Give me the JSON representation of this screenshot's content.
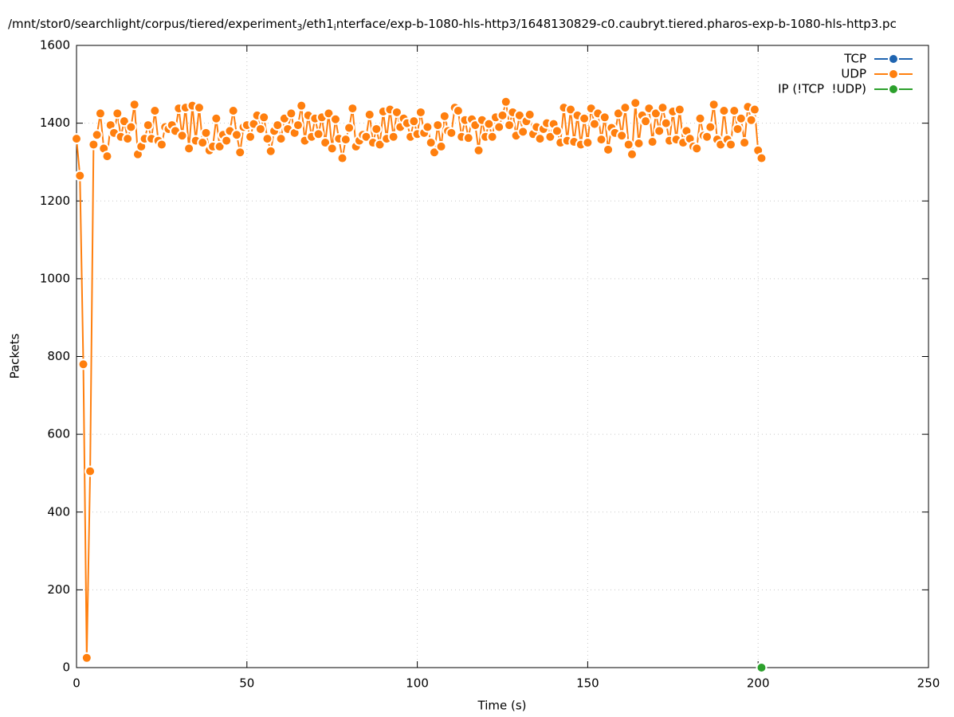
{
  "chart_data": {
    "type": "line",
    "title_parts": [
      "/mnt/stor0/searchlight/corpus/tiered/experiment",
      "3",
      "/eth1",
      "i",
      "nterface/exp-b-1080-hls-http3/1648130829-c0.caubryt.tiered.pharos-exp-b-1080-hls-http3.pc"
    ],
    "xlabel": "Time (s)",
    "ylabel": "Packets",
    "xlim": [
      0,
      250
    ],
    "xticks": [
      0,
      50,
      100,
      150,
      200,
      250
    ],
    "ylim": [
      0,
      1600
    ],
    "yticks": [
      0,
      200,
      400,
      600,
      800,
      1000,
      1200,
      1400,
      1600
    ],
    "grid": true,
    "legend": "top-right",
    "series": [
      {
        "name": "TCP",
        "color": "#1f64b0",
        "x": [],
        "values": []
      },
      {
        "name": "UDP",
        "color": "#ff7f0e",
        "x": [
          0,
          1,
          2,
          3,
          4,
          5,
          6,
          7,
          8,
          9,
          10,
          11,
          12,
          13,
          14,
          15,
          16,
          17,
          18,
          19,
          20,
          21,
          22,
          23,
          24,
          25,
          26,
          27,
          28,
          29,
          30,
          31,
          32,
          33,
          34,
          35,
          36,
          37,
          38,
          39,
          40,
          41,
          42,
          43,
          44,
          45,
          46,
          47,
          48,
          49,
          50,
          51,
          52,
          53,
          54,
          55,
          56,
          57,
          58,
          59,
          60,
          61,
          62,
          63,
          64,
          65,
          66,
          67,
          68,
          69,
          70,
          71,
          72,
          73,
          74,
          75,
          76,
          77,
          78,
          79,
          80,
          81,
          82,
          83,
          84,
          85,
          86,
          87,
          88,
          89,
          90,
          91,
          92,
          93,
          94,
          95,
          96,
          97,
          98,
          99,
          100,
          101,
          102,
          103,
          104,
          105,
          106,
          107,
          108,
          109,
          110,
          111,
          112,
          113,
          114,
          115,
          116,
          117,
          118,
          119,
          120,
          121,
          122,
          123,
          124,
          125,
          126,
          127,
          128,
          129,
          130,
          131,
          132,
          133,
          134,
          135,
          136,
          137,
          138,
          139,
          140,
          141,
          142,
          143,
          144,
          145,
          146,
          147,
          148,
          149,
          150,
          151,
          152,
          153,
          154,
          155,
          156,
          157,
          158,
          159,
          160,
          161,
          162,
          163,
          164,
          165,
          166,
          167,
          168,
          169,
          170,
          171,
          172,
          173,
          174,
          175,
          176,
          177,
          178,
          179,
          180,
          181,
          182,
          183,
          184,
          185,
          186,
          187,
          188,
          189,
          190,
          191,
          192,
          193,
          194,
          195,
          196,
          197,
          198,
          199,
          200,
          201
        ],
        "values": [
          1360,
          1265,
          780,
          25,
          505,
          1345,
          1370,
          1425,
          1335,
          1315,
          1395,
          1375,
          1425,
          1365,
          1405,
          1360,
          1390,
          1448,
          1320,
          1340,
          1360,
          1395,
          1360,
          1432,
          1355,
          1345,
          1390,
          1385,
          1395,
          1380,
          1438,
          1368,
          1440,
          1335,
          1445,
          1355,
          1440,
          1350,
          1375,
          1330,
          1340,
          1412,
          1340,
          1370,
          1355,
          1380,
          1432,
          1370,
          1325,
          1390,
          1395,
          1365,
          1398,
          1420,
          1385,
          1415,
          1360,
          1328,
          1380,
          1395,
          1360,
          1412,
          1385,
          1425,
          1375,
          1395,
          1445,
          1355,
          1420,
          1365,
          1412,
          1372,
          1415,
          1350,
          1425,
          1335,
          1410,
          1360,
          1310,
          1358,
          1388,
          1438,
          1340,
          1355,
          1370,
          1365,
          1422,
          1350,
          1385,
          1345,
          1430,
          1360,
          1435,
          1365,
          1428,
          1390,
          1412,
          1400,
          1365,
          1405,
          1372,
          1428,
          1375,
          1390,
          1350,
          1325,
          1395,
          1340,
          1418,
          1380,
          1375,
          1440,
          1432,
          1365,
          1408,
          1362,
          1410,
          1395,
          1330,
          1408,
          1365,
          1398,
          1365,
          1415,
          1390,
          1420,
          1455,
          1395,
          1428,
          1368,
          1420,
          1378,
          1405,
          1422,
          1372,
          1390,
          1360,
          1385,
          1400,
          1365,
          1398,
          1380,
          1350,
          1440,
          1355,
          1435,
          1352,
          1420,
          1345,
          1412,
          1350,
          1438,
          1398,
          1425,
          1358,
          1415,
          1332,
          1388,
          1375,
          1425,
          1368,
          1440,
          1345,
          1320,
          1452,
          1348,
          1420,
          1405,
          1438,
          1352,
          1425,
          1380,
          1440,
          1400,
          1355,
          1430,
          1358,
          1435,
          1350,
          1380,
          1360,
          1340,
          1335,
          1412,
          1368,
          1365,
          1390,
          1448,
          1358,
          1345,
          1432,
          1358,
          1345,
          1432,
          1385,
          1412,
          1350,
          1442,
          1408,
          1435,
          1330,
          1310
        ]
      },
      {
        "name": "IP (!TCP  !UDP)",
        "color": "#2ca02c",
        "x": [
          201
        ],
        "values": [
          0
        ]
      }
    ]
  }
}
